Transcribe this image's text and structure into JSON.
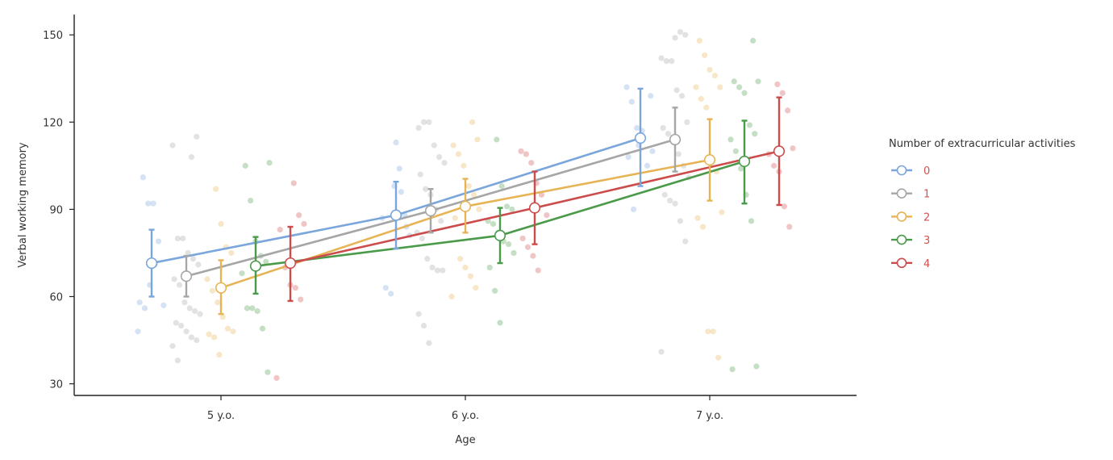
{
  "chart_data": {
    "type": "line",
    "title": "",
    "xlabel": "Age",
    "ylabel": "Verbal working memory",
    "categories": [
      "5 y.o.",
      "6 y.o.",
      "7 y.o."
    ],
    "ylim": [
      26,
      157
    ],
    "yticks": [
      30,
      60,
      90,
      120,
      150
    ],
    "grid": false,
    "legend": {
      "title": "Number of extracurricular activities",
      "placement": "right",
      "label_color": "#d45050"
    },
    "series": [
      {
        "name": "0",
        "color": "#7aa6dc",
        "means": [
          71.5,
          88,
          114.5
        ],
        "ci_low": [
          60,
          76.5,
          98
        ],
        "ci_high": [
          83,
          99.5,
          131.5
        ],
        "points": [
          [
            48,
            101,
            92,
            92,
            79,
            57,
            58,
            56,
            64,
            71
          ],
          [
            98,
            104,
            88,
            81,
            63,
            61,
            113,
            96,
            84,
            87
          ],
          [
            129,
            132,
            127,
            118,
            117,
            105,
            110,
            108,
            90,
            112
          ]
        ]
      },
      {
        "name": "1",
        "color": "#a6a6a6",
        "means": [
          67,
          89.5,
          114
        ],
        "ci_low": [
          60,
          82,
          103
        ],
        "ci_high": [
          74,
          97,
          125
        ],
        "points": [
          [
            108,
            115,
            112,
            80,
            80,
            75,
            73,
            71,
            66,
            64,
            58,
            56,
            55,
            54,
            51,
            50,
            48,
            46,
            45,
            43,
            38
          ],
          [
            118,
            120,
            120,
            112,
            108,
            106,
            102,
            97,
            95,
            90,
            86,
            82,
            80,
            73,
            70,
            69,
            69,
            54,
            50,
            44
          ],
          [
            149,
            151,
            150,
            142,
            141,
            141,
            131,
            129,
            120,
            118,
            116,
            113,
            109,
            105,
            101,
            95,
            93,
            92,
            86,
            79,
            41
          ]
        ]
      },
      {
        "name": "2",
        "color": "#e6b455",
        "means": [
          63,
          91,
          107
        ],
        "ci_low": [
          54,
          82,
          93
        ],
        "ci_high": [
          72.5,
          100.5,
          121
        ],
        "points": [
          [
            97,
            85,
            77,
            75,
            66,
            62,
            58,
            53,
            49,
            48,
            47,
            46,
            40
          ],
          [
            120,
            114,
            112,
            109,
            105,
            98,
            95,
            90,
            87,
            73,
            70,
            67,
            63,
            60
          ],
          [
            148,
            143,
            138,
            136,
            132,
            132,
            128,
            125,
            106,
            103,
            89,
            87,
            84,
            48,
            48,
            39
          ]
        ]
      },
      {
        "name": "3",
        "color": "#4a9a4a",
        "means": [
          70.5,
          81,
          106.5
        ],
        "ci_low": [
          61,
          71.5,
          92
        ],
        "ci_high": [
          80.5,
          90.5,
          120.5
        ],
        "points": [
          [
            106,
            105,
            93,
            79,
            74,
            72,
            68,
            56,
            56,
            55,
            49,
            34
          ],
          [
            114,
            98,
            91,
            90,
            86,
            85,
            82,
            79,
            78,
            75,
            70,
            62,
            51
          ],
          [
            148,
            134,
            134,
            132,
            130,
            119,
            116,
            114,
            110,
            104,
            95,
            86,
            36,
            35
          ]
        ]
      },
      {
        "name": "4",
        "color": "#cc4b4b",
        "means": [
          71.5,
          90.5,
          110
        ],
        "ci_low": [
          58.5,
          78,
          91.5
        ],
        "ci_high": [
          84,
          103,
          128.5
        ],
        "points": [
          [
            99,
            88,
            85,
            83,
            70,
            64,
            63,
            59,
            32
          ],
          [
            110,
            109,
            106,
            99,
            95,
            88,
            80,
            77,
            74,
            69
          ],
          [
            133,
            130,
            124,
            111,
            109,
            105,
            103,
            91,
            84
          ]
        ]
      }
    ]
  }
}
